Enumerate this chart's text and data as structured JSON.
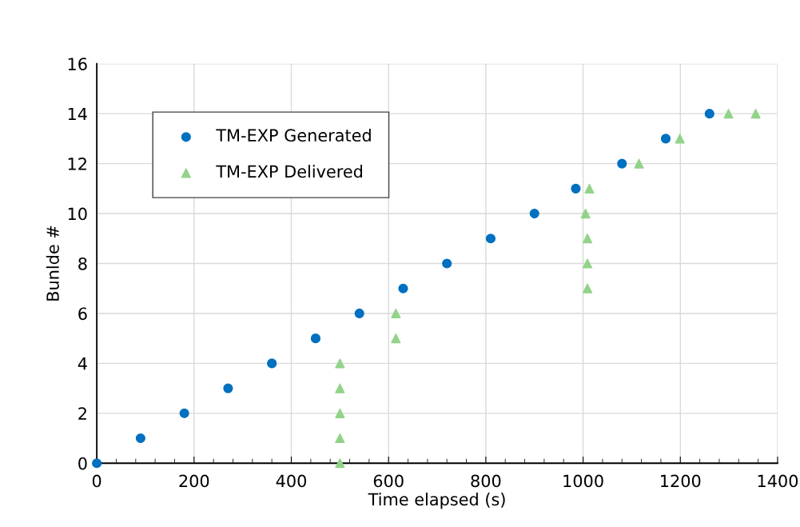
{
  "chart_data": {
    "type": "scatter",
    "xlabel": "Time elapsed (s)",
    "ylabel": "Bunlde #",
    "xlim": [
      0,
      1400
    ],
    "xticks": [
      0,
      200,
      400,
      600,
      800,
      1000,
      1200,
      1400
    ],
    "ylim": [
      0,
      16
    ],
    "yticks": [
      0,
      2,
      4,
      6,
      8,
      10,
      12,
      14,
      16
    ],
    "grid": true,
    "legend": "top left",
    "series": [
      {
        "name": "TM-EXP Generated",
        "color": "#0070c0",
        "marker": "circle",
        "x": [
          0,
          90,
          180,
          270,
          360,
          450,
          540,
          630,
          720,
          810,
          900,
          985,
          1080,
          1170,
          1260
        ],
        "values": [
          0,
          1,
          2,
          3,
          4,
          5,
          6,
          7,
          8,
          9,
          10,
          11,
          12,
          13,
          14
        ]
      },
      {
        "name": "TM-EXP Delivered",
        "color": "#92d38a",
        "marker": "triangle",
        "x": [
          500,
          500,
          500,
          500,
          500,
          615,
          615,
          1009,
          1009,
          1009,
          1005,
          1013,
          1115,
          1199,
          1299,
          1355
        ],
        "values": [
          0,
          1,
          2,
          3,
          4,
          5,
          6,
          7,
          8,
          9,
          10,
          11,
          12,
          13,
          14,
          14
        ]
      }
    ]
  }
}
